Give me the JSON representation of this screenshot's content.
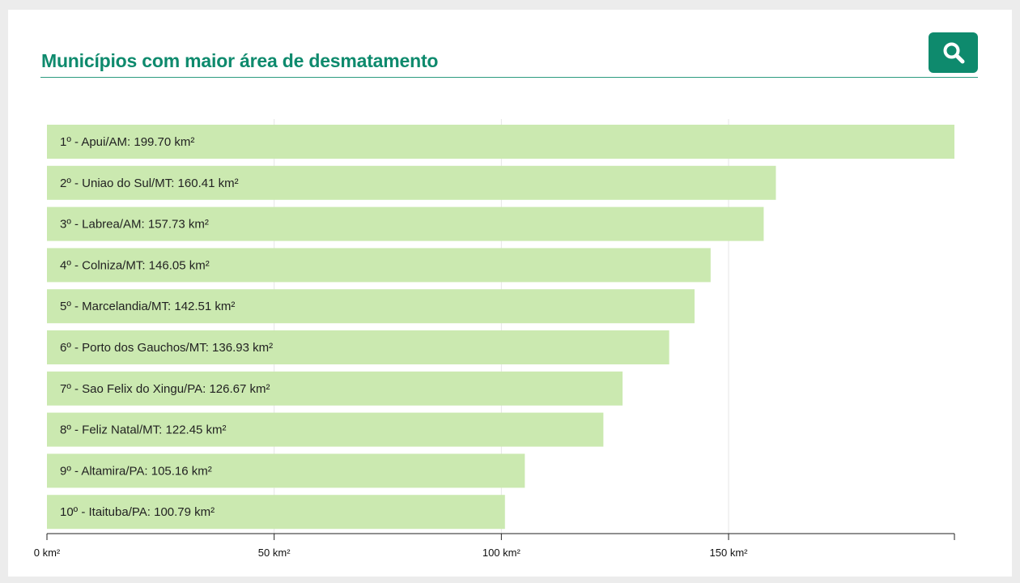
{
  "header": {
    "title": "Municípios com maior área de desmatamento",
    "search_icon": "search-icon"
  },
  "colors": {
    "accent": "#0e8a6d",
    "bar": "#cbe9b0",
    "grid": "#e6e6e6",
    "axis": "#222222"
  },
  "chart_data": {
    "type": "bar",
    "orientation": "horizontal",
    "title": "Municípios com maior área de desmatamento",
    "xlabel": "",
    "ylabel": "",
    "unit": "km²",
    "xlim": [
      0,
      199.7
    ],
    "grid": true,
    "ticks": [
      0,
      50,
      100,
      150
    ],
    "tick_labels": [
      "0 km²",
      "50 km²",
      "100 km²",
      "150 km²"
    ],
    "bars": [
      {
        "label": "1º - Apui/AM: 199.70 km²",
        "value": 199.7
      },
      {
        "label": "2º - Uniao do Sul/MT: 160.41 km²",
        "value": 160.41
      },
      {
        "label": "3º - Labrea/AM: 157.73 km²",
        "value": 157.73
      },
      {
        "label": "4º - Colniza/MT: 146.05 km²",
        "value": 146.05
      },
      {
        "label": "5º - Marcelandia/MT: 142.51 km²",
        "value": 142.51
      },
      {
        "label": "6º - Porto dos Gauchos/MT: 136.93 km²",
        "value": 136.93
      },
      {
        "label": "7º - Sao Felix do Xingu/PA: 126.67 km²",
        "value": 126.67
      },
      {
        "label": "8º - Feliz Natal/MT: 122.45 km²",
        "value": 122.45
      },
      {
        "label": "9º - Altamira/PA: 105.16 km²",
        "value": 105.16
      },
      {
        "label": "10º - Itaituba/PA: 100.79 km²",
        "value": 100.79
      }
    ]
  }
}
